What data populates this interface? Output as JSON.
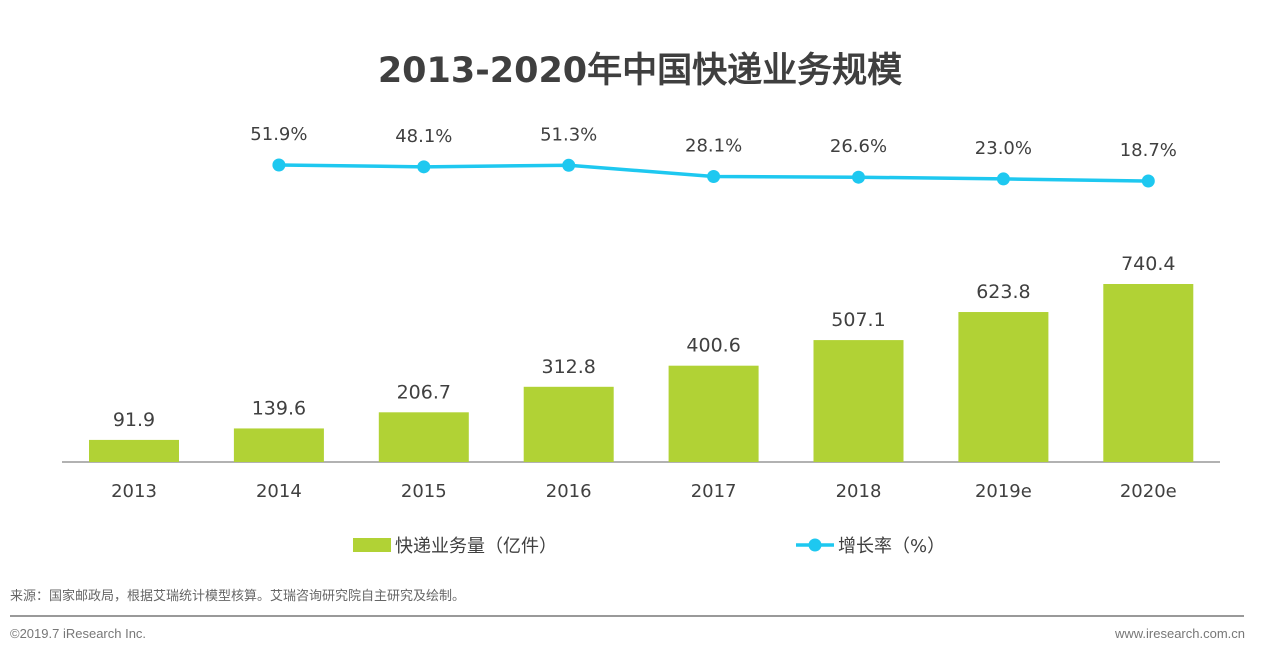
{
  "chart_data": {
    "type": "bar+line",
    "title": "2013-2020年中国快递业务规模",
    "categories": [
      "2013",
      "2014",
      "2015",
      "2016",
      "2017",
      "2018",
      "2019e",
      "2020e"
    ],
    "series": [
      {
        "name": "快递业务量（亿件）",
        "type": "bar",
        "color": "#b1d235",
        "values": [
          91.9,
          139.6,
          206.7,
          312.8,
          400.6,
          507.1,
          623.8,
          740.4
        ],
        "labels": [
          "91.9",
          "139.6",
          "206.7",
          "312.8",
          "400.6",
          "507.1",
          "623.8",
          "740.4"
        ]
      },
      {
        "name": "增长率（%）",
        "type": "line",
        "color": "#1ec8f0",
        "values": [
          null,
          51.9,
          48.1,
          51.3,
          28.1,
          26.6,
          23.0,
          18.7
        ],
        "labels": [
          null,
          "51.9%",
          "48.1%",
          "51.3%",
          "28.1%",
          "26.6%",
          "23.0%",
          "18.7%"
        ]
      }
    ],
    "legend": "bottom",
    "grid": false
  },
  "footer": {
    "source": "来源：国家邮政局，根据艾瑞统计模型核算。艾瑞咨询研究院自主研究及绘制。",
    "copyright": "©2019.7 iResearch Inc.",
    "url": "www.iresearch.com.cn"
  }
}
